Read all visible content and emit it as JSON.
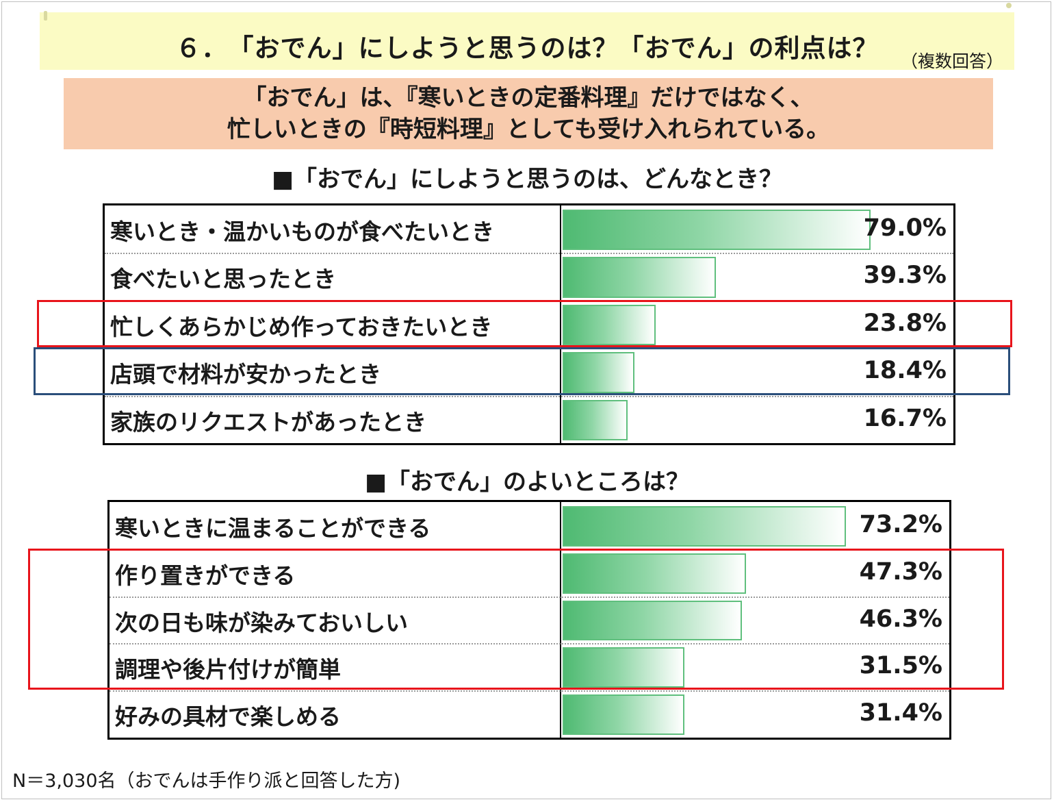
{
  "title": "６．　「おでん」にしようと思うのは？「おでん」の利点は？",
  "title_note": "（複数回答）",
  "summary": {
    "line1": "「おでん」は、『寒いときの定番料理』だけではなく、",
    "line2": "忙しいときの『時短料理』としても受け入れられている。"
  },
  "footnote": "N＝3,030名（おでんは手作り派と回答した方)",
  "colors": {
    "highlight_red": "#e8141b",
    "highlight_blue": "#2a4e7a",
    "bar_green": "#4fba72"
  },
  "chart_data": [
    {
      "type": "bar",
      "orientation": "horizontal",
      "title": "■「おでん」にしようと思うのは、どんなとき？",
      "categories": [
        "寒いとき・温かいものが食べたいとき",
        "食べたいと思ったとき",
        "忙しくあらかじめ作っておきたいとき",
        "店頭で材料が安かったとき",
        "家族のリクエストがあったとき"
      ],
      "values": [
        79.0,
        39.3,
        23.8,
        18.4,
        16.7
      ],
      "value_labels": [
        "79.0%",
        "39.3%",
        "23.8%",
        "18.4%",
        "16.7%"
      ],
      "xlim": [
        0,
        100
      ],
      "highlights": [
        {
          "rows": [
            2
          ],
          "color": "red"
        },
        {
          "rows": [
            3
          ],
          "color": "blue"
        }
      ]
    },
    {
      "type": "bar",
      "orientation": "horizontal",
      "title": "■「おでん」のよいところは？",
      "categories": [
        "寒いときに温まることができる",
        "作り置きができる",
        "次の日も味が染みておいしい",
        "調理や後片付けが簡単",
        "好みの具材で楽しめる"
      ],
      "values": [
        73.2,
        47.3,
        46.3,
        31.5,
        31.4
      ],
      "value_labels": [
        "73.2%",
        "47.3%",
        "46.3%",
        "31.5%",
        "31.4%"
      ],
      "xlim": [
        0,
        100
      ],
      "highlights": [
        {
          "rows": [
            1,
            2,
            3
          ],
          "color": "red"
        }
      ]
    }
  ]
}
